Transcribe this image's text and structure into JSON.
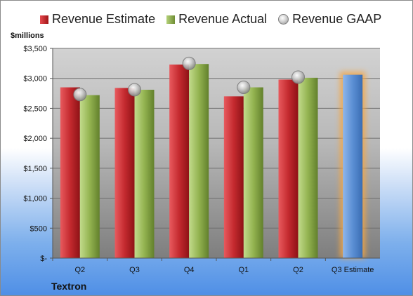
{
  "chart_data": {
    "type": "bar",
    "ylabel": "$millions",
    "company": "Textron",
    "categories": [
      "Q2",
      "Q3",
      "Q4",
      "Q1",
      "Q2",
      "Q3 Estimate"
    ],
    "ylim": [
      0,
      3500
    ],
    "yticks": [
      {
        "value": 0,
        "label": "$-"
      },
      {
        "value": 500,
        "label": "$500"
      },
      {
        "value": 1000,
        "label": "$1,000"
      },
      {
        "value": 1500,
        "label": "$1,500"
      },
      {
        "value": 2000,
        "label": "$2,000"
      },
      {
        "value": 2500,
        "label": "$2,500"
      },
      {
        "value": 3000,
        "label": "$3,000"
      },
      {
        "value": 3500,
        "label": "$3,500"
      }
    ],
    "series": [
      {
        "name": "Revenue Estimate",
        "type": "bar",
        "color": "#c0282d",
        "values": [
          2850,
          2840,
          3230,
          2700,
          2980,
          null
        ]
      },
      {
        "name": "Revenue Actual",
        "type": "bar",
        "color": "#8fb04c",
        "values": [
          2720,
          2810,
          3240,
          2850,
          3010,
          null
        ]
      },
      {
        "name": "Revenue GAAP",
        "type": "marker",
        "color": "#bfbfbf",
        "values": [
          2730,
          2810,
          3250,
          2850,
          3020,
          null
        ]
      },
      {
        "name": "Q3 Estimate",
        "type": "bar",
        "color": "#5b8fd4",
        "values": [
          null,
          null,
          null,
          null,
          null,
          3060
        ]
      }
    ],
    "legend_position": "top",
    "grid": true
  }
}
